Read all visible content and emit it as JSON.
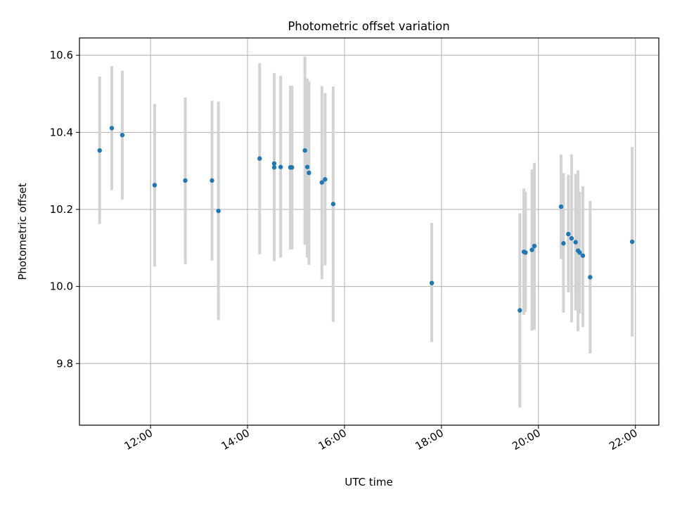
{
  "chart_data": {
    "type": "scatter",
    "title": "Photometric offset variation",
    "xlabel": "UTC time",
    "ylabel": "Photometric offset",
    "x_ticks": [
      "12:00",
      "14:00",
      "16:00",
      "18:00",
      "20:00",
      "22:00"
    ],
    "y_ticks": [
      "9.8",
      "10.0",
      "10.2",
      "10.4",
      "10.6"
    ],
    "y_tick_values": [
      9.8,
      10.0,
      10.2,
      10.4,
      10.6
    ],
    "xlim": [
      "10:32",
      "22:29"
    ],
    "ylim": [
      9.64,
      10.645
    ],
    "grid": true,
    "point_color": "#1f77b4",
    "errorbar_color": "#d3d3d3",
    "points": [
      {
        "time": "10:57",
        "y": 10.353,
        "low": 10.162,
        "high": 10.545
      },
      {
        "time": "11:12",
        "y": 10.411,
        "low": 10.25,
        "high": 10.572
      },
      {
        "time": "11:25",
        "y": 10.393,
        "low": 10.226,
        "high": 10.56
      },
      {
        "time": "12:05",
        "y": 10.263,
        "low": 10.052,
        "high": 10.474
      },
      {
        "time": "12:43",
        "y": 10.275,
        "low": 10.058,
        "high": 10.49
      },
      {
        "time": "13:16",
        "y": 10.275,
        "low": 10.067,
        "high": 10.482
      },
      {
        "time": "13:24",
        "y": 10.196,
        "low": 9.913,
        "high": 10.48
      },
      {
        "time": "14:15",
        "y": 10.332,
        "low": 10.084,
        "high": 10.579
      },
      {
        "time": "14:33",
        "y": 10.319,
        "low": 10.066,
        "high": 10.554
      },
      {
        "time": "14:33",
        "y": 10.309,
        "low": 10.066,
        "high": 10.554
      },
      {
        "time": "14:41",
        "y": 10.31,
        "low": 10.075,
        "high": 10.547
      },
      {
        "time": "14:53",
        "y": 10.309,
        "low": 10.096,
        "high": 10.521
      },
      {
        "time": "14:55",
        "y": 10.309,
        "low": 10.096,
        "high": 10.521
      },
      {
        "time": "15:11",
        "y": 10.353,
        "low": 10.108,
        "high": 10.597
      },
      {
        "time": "15:14",
        "y": 10.31,
        "low": 10.075,
        "high": 10.54
      },
      {
        "time": "15:16",
        "y": 10.295,
        "low": 10.056,
        "high": 10.533
      },
      {
        "time": "15:32",
        "y": 10.27,
        "low": 10.019,
        "high": 10.52
      },
      {
        "time": "15:36",
        "y": 10.278,
        "low": 10.055,
        "high": 10.502
      },
      {
        "time": "15:46",
        "y": 10.214,
        "low": 9.908,
        "high": 10.519
      },
      {
        "time": "17:48",
        "y": 10.009,
        "low": 9.856,
        "high": 10.165
      },
      {
        "time": "19:37",
        "y": 9.938,
        "low": 9.686,
        "high": 10.19
      },
      {
        "time": "19:42",
        "y": 10.09,
        "low": 9.926,
        "high": 10.254
      },
      {
        "time": "19:44",
        "y": 10.088,
        "low": 9.934,
        "high": 10.246
      },
      {
        "time": "19:52",
        "y": 10.095,
        "low": 9.885,
        "high": 10.304
      },
      {
        "time": "19:55",
        "y": 10.105,
        "low": 9.888,
        "high": 10.321
      },
      {
        "time": "20:28",
        "y": 10.207,
        "low": 10.071,
        "high": 10.342
      },
      {
        "time": "20:31",
        "y": 10.112,
        "low": 9.932,
        "high": 10.294
      },
      {
        "time": "20:37",
        "y": 10.136,
        "low": 9.985,
        "high": 10.29
      },
      {
        "time": "20:41",
        "y": 10.125,
        "low": 9.907,
        "high": 10.343
      },
      {
        "time": "20:46",
        "y": 10.115,
        "low": 9.938,
        "high": 10.292
      },
      {
        "time": "20:49",
        "y": 10.093,
        "low": 9.884,
        "high": 10.301
      },
      {
        "time": "20:51",
        "y": 10.088,
        "low": 9.93,
        "high": 10.246
      },
      {
        "time": "20:55",
        "y": 10.08,
        "low": 9.895,
        "high": 10.26
      },
      {
        "time": "21:04",
        "y": 10.024,
        "low": 9.826,
        "high": 10.222
      },
      {
        "time": "21:56",
        "y": 10.116,
        "low": 9.87,
        "high": 10.362
      }
    ]
  }
}
